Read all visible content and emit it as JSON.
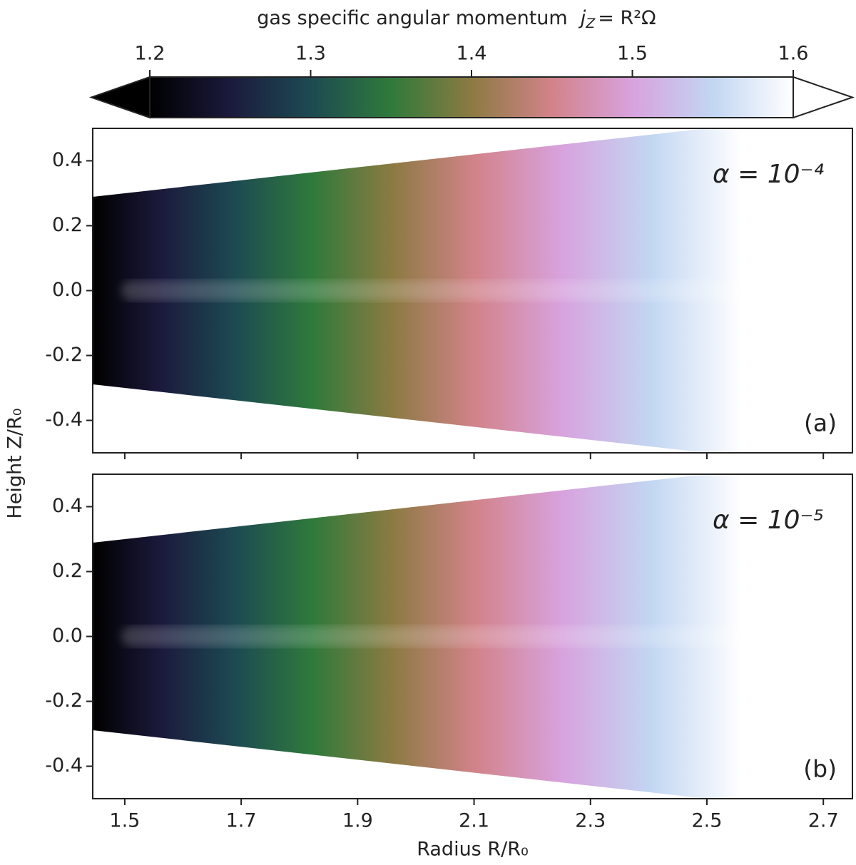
{
  "colorbar": {
    "title": "gas specific angular momentum",
    "symbol": "j",
    "symbol_sub": "Z",
    "equation": "= R²Ω",
    "lim": [
      1.2,
      1.6
    ],
    "ticks": [
      1.2,
      1.3,
      1.4,
      1.5,
      1.6
    ],
    "colormap": [
      "#000000",
      "#1b1a3c",
      "#1d4a52",
      "#2f7a3b",
      "#8c7a42",
      "#d2838a",
      "#d8a2de",
      "#c2d6f2",
      "#ffffff"
    ]
  },
  "ylabel": "Height Z/R₀",
  "chart_data": [
    {
      "type": "heatmap",
      "annotation": "α = 10⁻⁴",
      "label": "(a)",
      "xlim": [
        1.445,
        2.75
      ],
      "ylim": [
        -0.5,
        0.5
      ],
      "xticks": [
        1.5,
        1.7,
        1.9,
        2.1,
        2.3,
        2.5,
        2.7
      ],
      "xticklabels": false,
      "yticks": [
        -0.4,
        -0.2,
        {
          "value": 0,
          "label": "0.0"
        },
        0.2,
        0.4
      ],
      "wedge_slope": 0.2
    },
    {
      "type": "heatmap",
      "annotation": "α = 10⁻⁵",
      "label": "(b)",
      "xlabel": "Radius R/R₀",
      "xlim": [
        1.445,
        2.75
      ],
      "ylim": [
        -0.5,
        0.5
      ],
      "xticks": [
        1.5,
        1.7,
        1.9,
        2.1,
        2.3,
        2.5,
        2.7
      ],
      "xticklabels": true,
      "yticks": [
        -0.4,
        -0.2,
        {
          "value": 0,
          "label": "0.0"
        },
        0.2,
        0.4
      ],
      "wedge_slope": 0.2
    }
  ]
}
